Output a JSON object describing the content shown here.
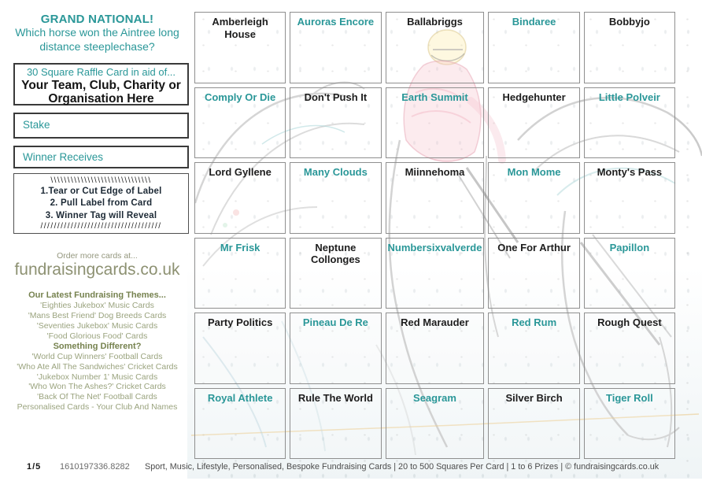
{
  "colors": {
    "teal": "#2a9798",
    "name_dark": "#1d1d1d",
    "olive_heading": "#76824f",
    "olive_text": "#9aa37e",
    "footer_text": "#4c4c4c"
  },
  "sidebar": {
    "title": "GRAND NATIONAL!",
    "subtitle": "Which horse won the Aintree long distance steeplechase?",
    "aid_box": {
      "line1": "30 Square Raffle Card in aid of...",
      "line2": "Your Team, Club, Charity or Organisation Here"
    },
    "stake_label": "Stake",
    "winner_label": "Winner Receives",
    "instructions": {
      "hatch_top": "\\\\\\\\\\\\\\\\\\\\\\\\\\\\\\\\\\\\\\\\\\\\\\\\\\\\\\\\\\\\",
      "steps": [
        "1.Tear or Cut Edge of Label",
        "2. Pull Label from Card",
        "3. Winner Tag will Reveal"
      ],
      "hatch_bottom": "////////////////////////////////////"
    },
    "order": {
      "line1": "Order more cards at...",
      "url": "fundraisingcards.co.uk"
    },
    "themes": {
      "heading1": "Our Latest Fundraising Themes...",
      "items1": [
        "'Eighties Jukebox' Music Cards",
        "'Mans Best Friend' Dog Breeds Cards",
        "'Seventies Jukebox' Music Cards",
        "'Food Glorious Food' Cards"
      ],
      "heading2": "Something Different?",
      "items2": [
        "'World Cup Winners' Football Cards",
        "'Who Ate All The Sandwiches' Cricket Cards",
        "'Jukebox Number 1' Music Cards",
        "'Who Won The Ashes?' Cricket Cards",
        "'Back Of The Net' Football Cards",
        "Personalised Cards - Your Club And Names"
      ]
    }
  },
  "grid": {
    "cells": [
      {
        "label": "Amberleigh House",
        "accent": false
      },
      {
        "label": "Auroras Encore",
        "accent": true
      },
      {
        "label": "Ballabriggs",
        "accent": false
      },
      {
        "label": "Bindaree",
        "accent": true
      },
      {
        "label": "Bobbyjo",
        "accent": false
      },
      {
        "label": "Comply Or Die",
        "accent": true
      },
      {
        "label": "Don't Push It",
        "accent": false
      },
      {
        "label": "Earth Summit",
        "accent": true
      },
      {
        "label": "Hedgehunter",
        "accent": false
      },
      {
        "label": "Little Polveir",
        "accent": true
      },
      {
        "label": "Lord Gyllene",
        "accent": false
      },
      {
        "label": "Many Clouds",
        "accent": true
      },
      {
        "label": "Miinnehoma",
        "accent": false
      },
      {
        "label": "Mon Mome",
        "accent": true
      },
      {
        "label": "Monty's Pass",
        "accent": false
      },
      {
        "label": "Mr Frisk",
        "accent": true
      },
      {
        "label": "Neptune Collonges",
        "accent": false
      },
      {
        "label": "Numbersixvalverde",
        "accent": true
      },
      {
        "label": "One For Arthur",
        "accent": false
      },
      {
        "label": "Papillon",
        "accent": true
      },
      {
        "label": "Party Politics",
        "accent": false
      },
      {
        "label": "Pineau De Re",
        "accent": true
      },
      {
        "label": "Red Marauder",
        "accent": false
      },
      {
        "label": "Red Rum",
        "accent": true
      },
      {
        "label": "Rough Quest",
        "accent": false
      },
      {
        "label": "Royal Athlete",
        "accent": true
      },
      {
        "label": "Rule The World",
        "accent": false
      },
      {
        "label": "Seagram",
        "accent": true
      },
      {
        "label": "Silver Birch",
        "accent": false
      },
      {
        "label": "Tiger Roll",
        "accent": true
      }
    ]
  },
  "footer": {
    "page_number": "1/5",
    "serial": "1610197336.8282",
    "description": "Sport, Music, Lifestyle, Personalised, Bespoke Fundraising Cards | 20 to 500 Squares Per Card | 1 to 6 Prizes | © fundraisingcards.co.uk"
  }
}
